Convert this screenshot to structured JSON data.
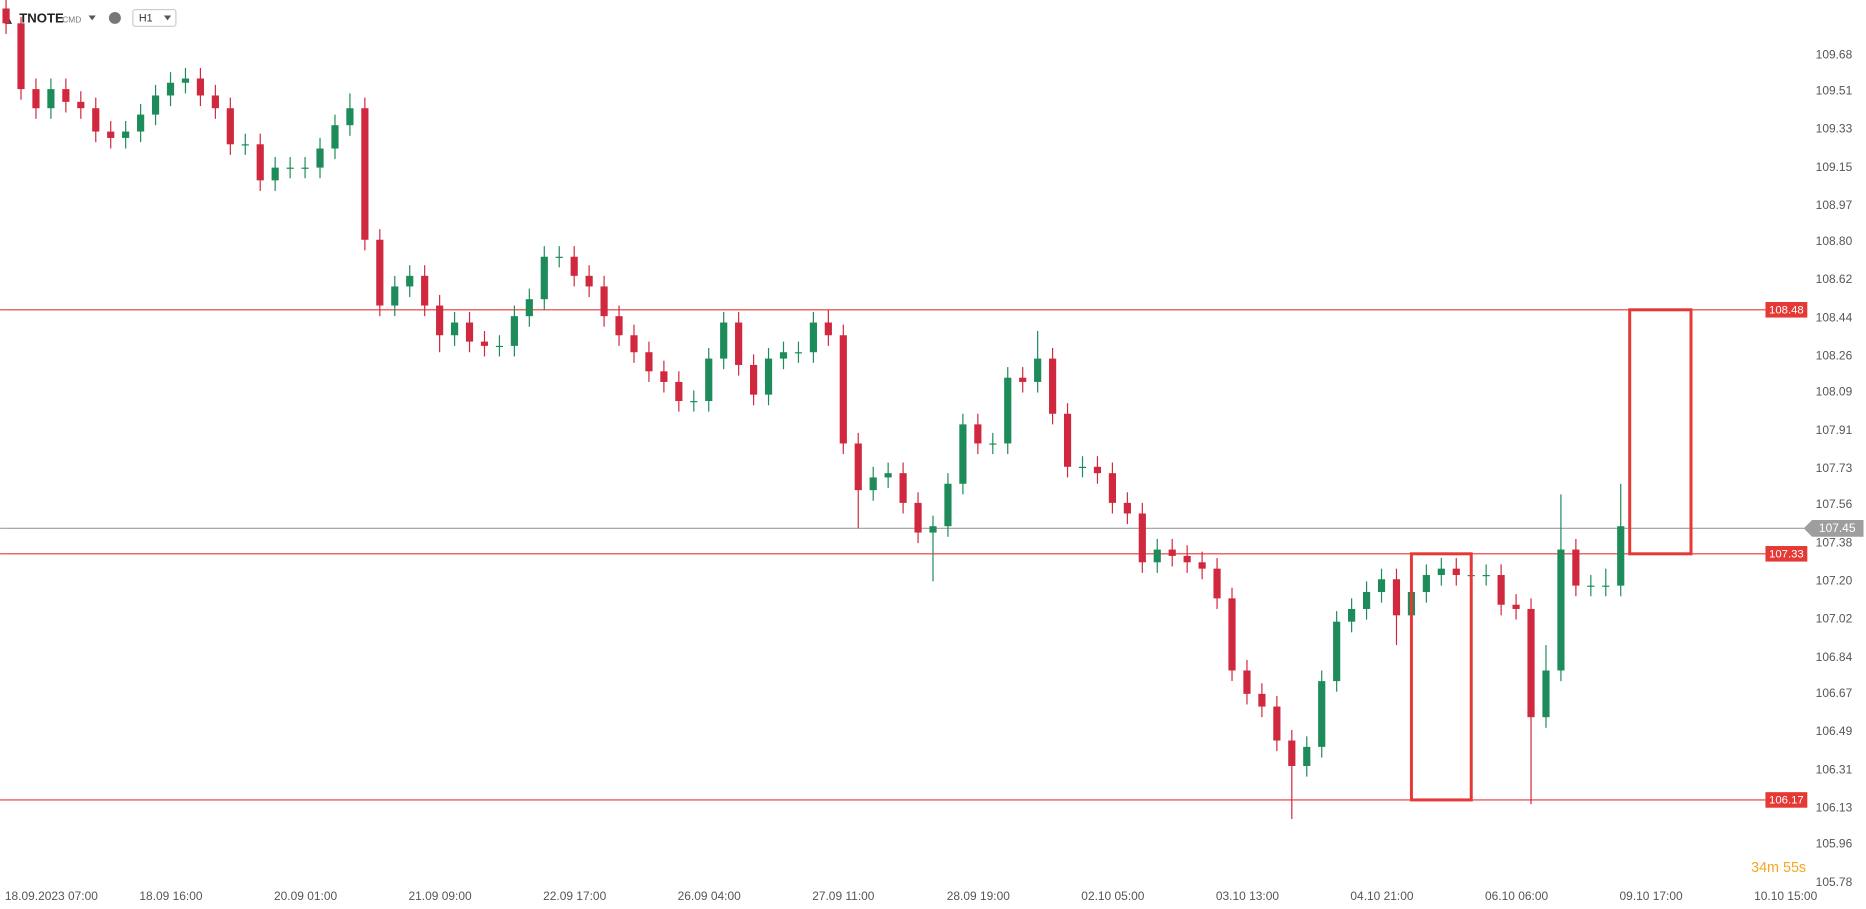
{
  "header": {
    "symbol": "TNOTE",
    "market": "CMD",
    "interval": "H1"
  },
  "countdown": "34m 55s",
  "chart_data": {
    "type": "candlestick",
    "up_color": "#1e8c5a",
    "down_color": "#d0283e",
    "categories": [
      "18.09.2023 07:00",
      null,
      null,
      null,
      null,
      null,
      null,
      null,
      null,
      "18.09 16:00",
      null,
      null,
      null,
      null,
      null,
      null,
      null,
      null,
      "20.09 01:00",
      null,
      null,
      null,
      null,
      null,
      null,
      null,
      null,
      "21.09 09:00",
      null,
      null,
      null,
      null,
      null,
      null,
      null,
      null,
      "22.09 17:00",
      null,
      null,
      null,
      null,
      null,
      null,
      null,
      null,
      "26.09 04:00",
      null,
      null,
      null,
      null,
      null,
      null,
      null,
      null,
      "27.09 11:00",
      null,
      null,
      null,
      null,
      null,
      null,
      null,
      null,
      "28.09 19:00",
      null,
      null,
      null,
      null,
      null,
      null,
      null,
      null,
      "02.10 05:00",
      null,
      null,
      null,
      null,
      null,
      null,
      null,
      null,
      "03.10 13:00",
      null,
      null,
      null,
      null,
      null,
      null,
      null,
      null,
      "04.10 21:00",
      null,
      null,
      null,
      null,
      null,
      null,
      null,
      null,
      "06.10 06:00",
      null,
      null,
      null,
      null,
      null,
      null,
      null,
      null,
      "09.10 17:00",
      null,
      null,
      null,
      null,
      null,
      null,
      null,
      null,
      "10.10 15:00"
    ],
    "open": [
      109.9,
      109.83,
      109.52,
      109.43,
      109.52,
      109.46,
      109.43,
      109.32,
      109.29,
      109.32,
      109.4,
      109.49,
      109.55,
      109.57,
      109.49,
      109.43,
      109.26,
      109.26,
      109.09,
      109.15,
      109.15,
      109.15,
      109.24,
      109.35,
      109.43,
      108.81,
      108.5,
      108.59,
      108.64,
      108.5,
      108.36,
      108.42,
      108.33,
      108.31,
      108.31,
      108.45,
      108.53,
      108.73,
      108.73,
      108.64,
      108.59,
      108.45,
      108.36,
      108.28,
      108.19,
      108.14,
      108.05,
      108.05,
      108.25,
      108.42,
      108.22,
      108.08,
      108.25,
      108.28,
      108.28,
      108.42,
      108.36,
      107.85,
      107.63,
      107.69,
      107.71,
      107.57,
      107.43,
      107.46,
      107.66,
      107.94,
      107.85,
      107.85,
      108.16,
      108.14,
      108.25,
      107.99,
      107.74,
      107.74,
      107.71,
      107.57,
      107.52,
      107.29,
      107.35,
      107.32,
      107.29,
      107.26,
      107.12,
      106.78,
      106.67,
      106.61,
      106.45,
      106.33,
      106.42,
      106.73,
      107.01,
      107.07,
      107.15,
      107.21,
      107.04,
      107.15,
      107.23,
      107.26,
      107.23,
      107.23,
      107.23,
      107.09,
      107.07,
      106.56,
      106.78,
      107.35,
      107.18,
      107.18,
      107.18,
      null,
      null,
      null,
      null,
      null,
      null,
      null,
      null,
      null
    ],
    "high": [
      109.96,
      109.86,
      109.57,
      109.57,
      109.57,
      109.51,
      109.48,
      109.37,
      109.37,
      109.45,
      109.54,
      109.6,
      109.62,
      109.62,
      109.54,
      109.48,
      109.31,
      109.31,
      109.2,
      109.2,
      109.2,
      109.29,
      109.4,
      109.5,
      109.48,
      108.86,
      108.64,
      108.69,
      108.69,
      108.55,
      108.47,
      108.47,
      108.38,
      108.36,
      108.5,
      108.58,
      108.78,
      108.78,
      108.78,
      108.69,
      108.64,
      108.5,
      108.41,
      108.33,
      108.24,
      108.19,
      108.1,
      108.3,
      108.47,
      108.47,
      108.27,
      108.3,
      108.33,
      108.33,
      108.47,
      108.48,
      108.41,
      107.9,
      107.74,
      107.76,
      107.76,
      107.62,
      107.51,
      107.71,
      107.99,
      107.99,
      107.9,
      108.21,
      108.21,
      108.38,
      108.3,
      108.04,
      107.79,
      107.79,
      107.76,
      107.62,
      107.57,
      107.4,
      107.4,
      107.37,
      107.34,
      107.31,
      107.17,
      106.83,
      106.72,
      106.66,
      106.5,
      106.47,
      106.78,
      107.06,
      107.12,
      107.2,
      107.26,
      107.26,
      107.3,
      107.28,
      107.31,
      107.31,
      107.28,
      107.28,
      107.28,
      107.14,
      107.12,
      106.9,
      107.61,
      107.4,
      107.23,
      107.26,
      107.66,
      null,
      null,
      null,
      null,
      null,
      null,
      null,
      null,
      null
    ],
    "low": [
      109.78,
      109.47,
      109.38,
      109.38,
      109.41,
      109.38,
      109.27,
      109.24,
      109.24,
      109.27,
      109.35,
      109.44,
      109.5,
      109.44,
      109.38,
      109.21,
      109.21,
      109.04,
      109.04,
      109.1,
      109.1,
      109.1,
      109.19,
      109.3,
      108.76,
      108.45,
      108.45,
      108.54,
      108.45,
      108.28,
      108.31,
      108.28,
      108.26,
      108.26,
      108.26,
      108.4,
      108.48,
      108.68,
      108.59,
      108.54,
      108.4,
      108.31,
      108.23,
      108.14,
      108.09,
      108.0,
      108.0,
      108.0,
      108.2,
      108.17,
      108.03,
      108.03,
      108.2,
      108.23,
      108.23,
      108.31,
      107.8,
      107.45,
      107.58,
      107.64,
      107.52,
      107.38,
      107.2,
      107.41,
      107.61,
      107.8,
      107.8,
      107.8,
      108.09,
      108.09,
      107.94,
      107.69,
      107.69,
      107.66,
      107.52,
      107.47,
      107.24,
      107.24,
      107.27,
      107.24,
      107.21,
      107.07,
      106.73,
      106.62,
      106.56,
      106.4,
      106.08,
      106.28,
      106.37,
      106.68,
      106.96,
      107.02,
      107.1,
      106.9,
      106.99,
      107.1,
      107.18,
      107.18,
      107.18,
      107.18,
      107.04,
      107.02,
      106.15,
      106.51,
      106.73,
      107.13,
      107.13,
      107.13,
      107.13,
      null,
      null,
      null,
      null,
      null,
      null,
      null,
      null,
      null
    ],
    "close": [
      109.83,
      109.52,
      109.43,
      109.52,
      109.46,
      109.43,
      109.32,
      109.29,
      109.32,
      109.4,
      109.49,
      109.55,
      109.57,
      109.49,
      109.43,
      109.26,
      109.26,
      109.09,
      109.15,
      109.15,
      109.15,
      109.24,
      109.35,
      109.43,
      108.81,
      108.5,
      108.59,
      108.64,
      108.5,
      108.36,
      108.42,
      108.33,
      108.31,
      108.31,
      108.45,
      108.53,
      108.73,
      108.73,
      108.64,
      108.59,
      108.45,
      108.36,
      108.28,
      108.19,
      108.14,
      108.05,
      108.05,
      108.25,
      108.42,
      108.22,
      108.08,
      108.25,
      108.28,
      108.28,
      108.42,
      108.36,
      107.85,
      107.63,
      107.69,
      107.71,
      107.57,
      107.43,
      107.46,
      107.66,
      107.94,
      107.85,
      107.85,
      108.16,
      108.14,
      108.25,
      107.99,
      107.74,
      107.74,
      107.71,
      107.57,
      107.52,
      107.29,
      107.35,
      107.32,
      107.29,
      107.26,
      107.12,
      106.78,
      106.67,
      106.61,
      106.45,
      106.33,
      106.42,
      106.73,
      107.01,
      107.07,
      107.15,
      107.21,
      107.04,
      107.15,
      107.23,
      107.26,
      107.23,
      107.23,
      107.23,
      107.09,
      107.07,
      106.56,
      106.78,
      107.35,
      107.18,
      107.18,
      107.18,
      107.46,
      null,
      null,
      null,
      null,
      null,
      null,
      null,
      null,
      null
    ],
    "ylim": [
      105.78,
      109.94
    ],
    "yticks": [
      109.68,
      109.51,
      109.33,
      109.15,
      108.97,
      {
        "value": 108.8,
        "label": "108.80"
      },
      108.62,
      108.44,
      108.26,
      108.09,
      107.91,
      107.73,
      107.56,
      107.38,
      {
        "value": 107.2,
        "label": "107.20"
      },
      107.02,
      106.84,
      106.67,
      106.49,
      106.31,
      106.13,
      105.96,
      105.78
    ],
    "levels": [
      {
        "value": 108.48,
        "color": "#e53935"
      },
      {
        "value": 107.33,
        "color": "#e53935"
      },
      {
        "value": 106.17,
        "color": "#e53935"
      }
    ],
    "current_price": {
      "value": 107.45,
      "color": "#9e9e9e"
    },
    "boxes": [
      {
        "x": [
          94,
          98
        ],
        "y": [
          106.17,
          107.33
        ],
        "color": "#e53935"
      },
      {
        "x": [
          108.6,
          112.7
        ],
        "y": [
          107.33,
          108.48
        ],
        "color": "#e53935"
      }
    ]
  }
}
